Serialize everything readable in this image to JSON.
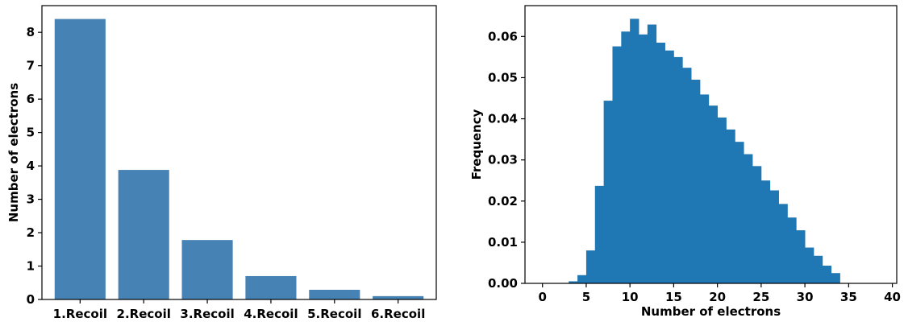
{
  "chart_data": [
    {
      "type": "bar",
      "title": "",
      "xlabel": "",
      "ylabel": "Number of electrons",
      "categories": [
        "1.Recoil",
        "2.Recoil",
        "3.Recoil",
        "4.Recoil",
        "5.Recoil",
        "6.Recoil"
      ],
      "values": [
        8.4,
        3.88,
        1.78,
        0.7,
        0.29,
        0.1
      ],
      "ylim": [
        0,
        8.8
      ],
      "yticks": [
        0,
        1,
        2,
        3,
        4,
        5,
        6,
        7,
        8
      ],
      "color": "#4682b4",
      "grid": false
    },
    {
      "type": "bar",
      "histogram": true,
      "title": "",
      "xlabel": "Number of electrons",
      "ylabel": "Frequency",
      "bin_width": 1,
      "bin_starts": [
        2,
        3,
        4,
        5,
        6,
        7,
        8,
        9,
        10,
        11,
        12,
        13,
        14,
        15,
        16,
        17,
        18,
        19,
        20,
        21,
        22,
        23,
        24,
        25,
        26,
        27,
        28,
        29,
        30,
        31,
        32,
        33
      ],
      "values": [
        0.0001,
        0.0005,
        0.002,
        0.008,
        0.0237,
        0.0444,
        0.0576,
        0.0612,
        0.0643,
        0.0605,
        0.0629,
        0.0585,
        0.0566,
        0.055,
        0.0524,
        0.0495,
        0.0459,
        0.0432,
        0.0403,
        0.0374,
        0.0344,
        0.0314,
        0.0285,
        0.025,
        0.0226,
        0.0193,
        0.016,
        0.0129,
        0.0087,
        0.0067,
        0.0043,
        0.0025
      ],
      "xlim": [
        -2,
        40.5
      ],
      "ylim": [
        0,
        0.0675
      ],
      "xticks": [
        0,
        5,
        10,
        15,
        20,
        25,
        30,
        35,
        40
      ],
      "yticks": [
        "0.00",
        "0.01",
        "0.02",
        "0.03",
        "0.04",
        "0.05",
        "0.06"
      ],
      "color": "#1f77b4",
      "grid": false
    }
  ]
}
